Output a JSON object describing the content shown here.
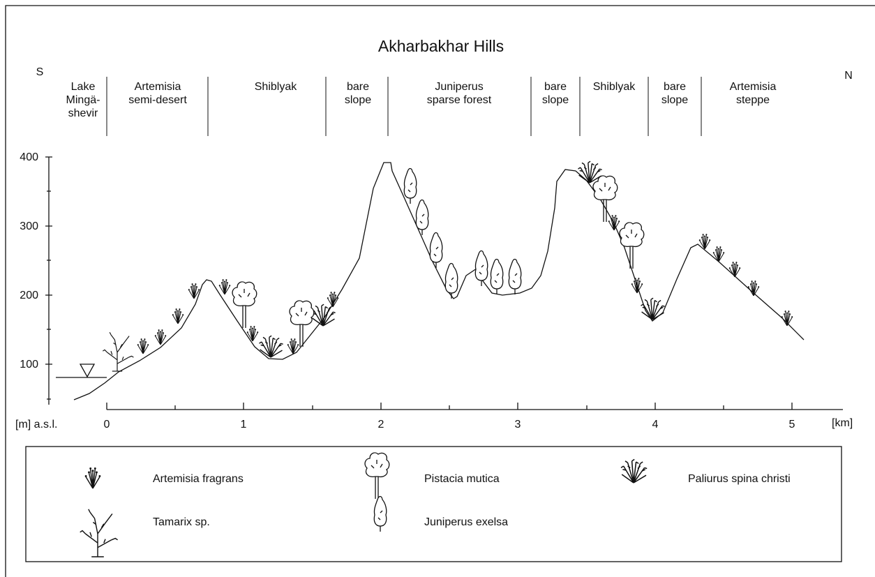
{
  "title": "Akharbakhar Hills",
  "left_direction": "S",
  "right_direction": "N",
  "zones": [
    {
      "lines": [
        "Lake",
        "Mingä-",
        "shevir"
      ]
    },
    {
      "lines": [
        "Artemisia",
        "semi-desert"
      ]
    },
    {
      "lines": [
        "Shiblyak"
      ]
    },
    {
      "lines": [
        "bare",
        "slope"
      ]
    },
    {
      "lines": [
        "Juniperus",
        "sparse forest"
      ]
    },
    {
      "lines": [
        "bare",
        "slope"
      ]
    },
    {
      "lines": [
        "Shiblyak"
      ]
    },
    {
      "lines": [
        "bare",
        "slope"
      ]
    },
    {
      "lines": [
        "Artemisia",
        "steppe"
      ]
    }
  ],
  "y_axis": {
    "unit": "[m] a.s.l.",
    "ticks": [
      400,
      300,
      200,
      100
    ]
  },
  "x_axis": {
    "unit": "[km]",
    "ticks": [
      0,
      1,
      2,
      3,
      4,
      5
    ]
  },
  "legend": [
    "Artemisia fragrans",
    "Pistacia mutica",
    "Paliurus spina christi",
    "Tamarix sp.",
    "Juniperus exelsa"
  ]
}
